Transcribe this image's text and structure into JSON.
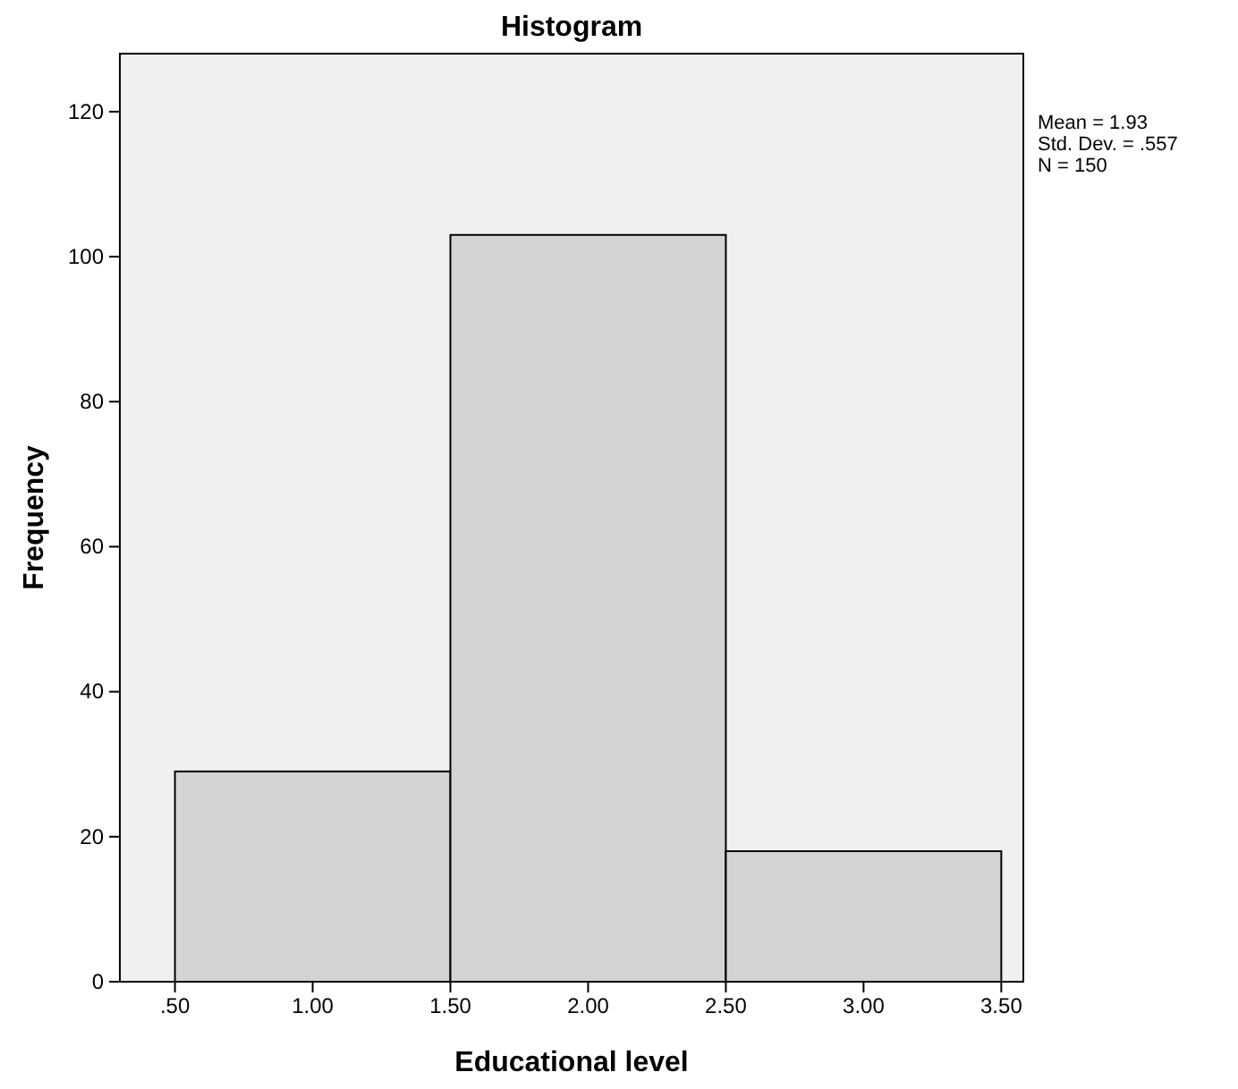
{
  "chart_data": {
    "type": "histogram",
    "title": "Histogram",
    "xlabel": "Educational level",
    "ylabel": "Frequency",
    "bins": [
      0.5,
      1.5,
      2.5,
      3.5
    ],
    "values": [
      29,
      103,
      18
    ],
    "color": "#d3d3d3",
    "xlim": [
      0.3,
      3.58
    ],
    "ylim": [
      0,
      128
    ],
    "xticks": [
      {
        "value": 0.5,
        "label": ".50"
      },
      {
        "value": 1,
        "label": "1.00"
      },
      {
        "value": 1.5,
        "label": "1.50"
      },
      {
        "value": 2,
        "label": "2.00"
      },
      {
        "value": 2.5,
        "label": "2.50"
      },
      {
        "value": 3,
        "label": "3.00"
      },
      {
        "value": 3.5,
        "label": "3.50"
      }
    ],
    "yticks": [
      0,
      20,
      40,
      60,
      80,
      100,
      120
    ],
    "annotations": [
      "Mean = 1.93",
      "Std. Dev. = .557",
      "N = 150"
    ],
    "grid": false
  }
}
